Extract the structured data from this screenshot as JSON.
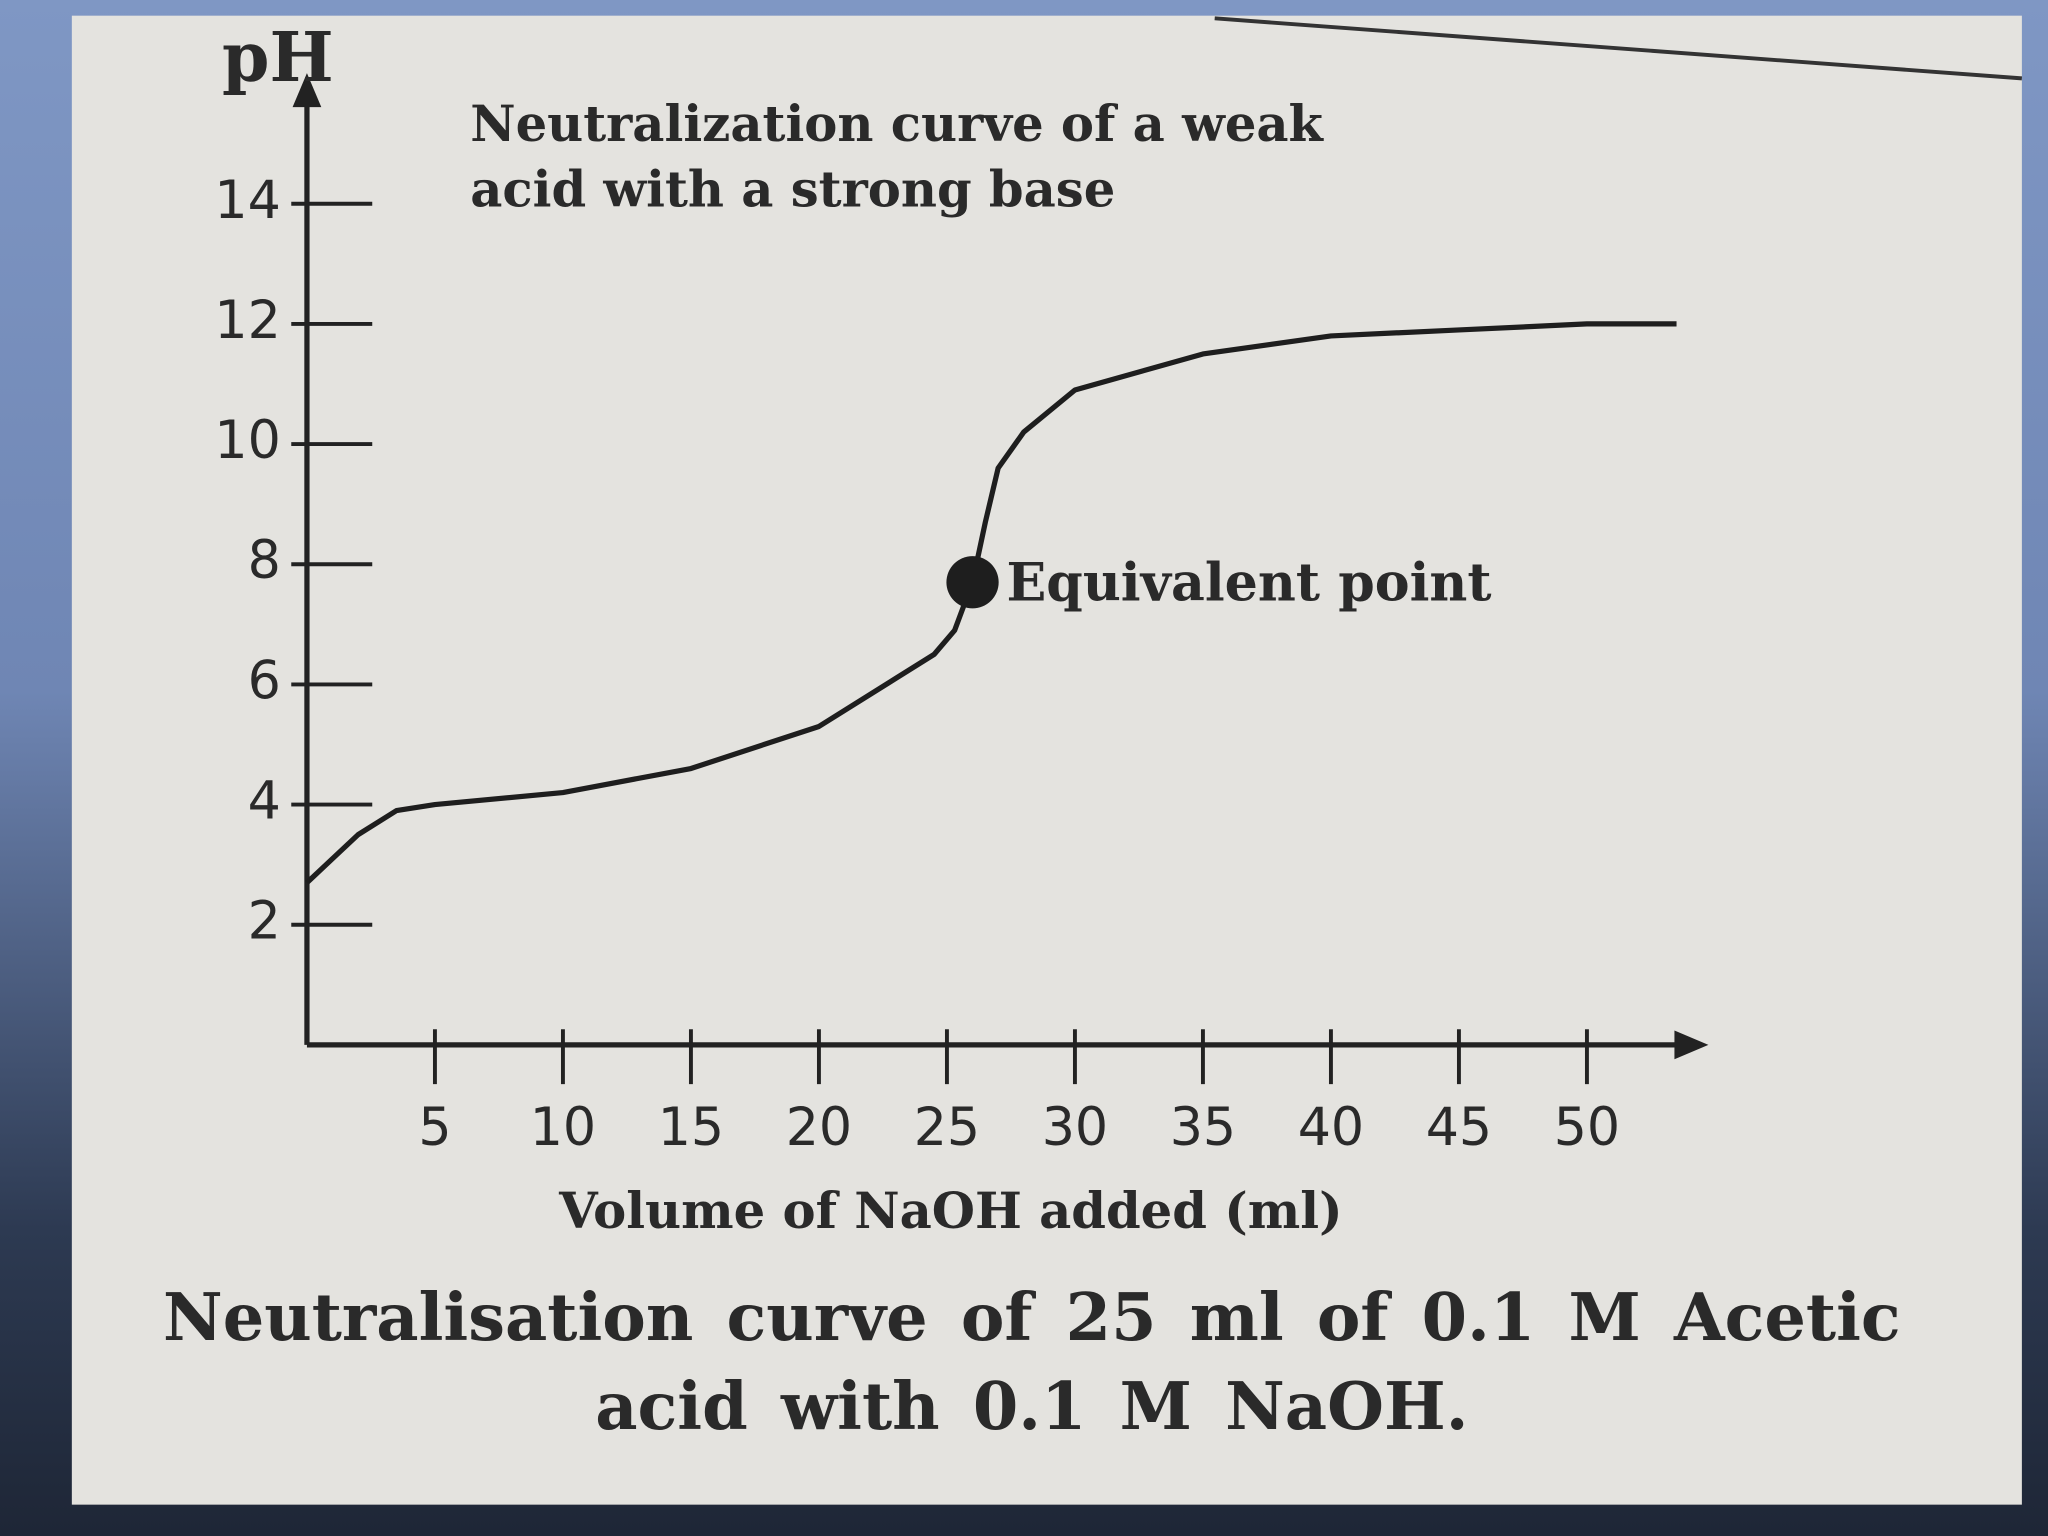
{
  "chart_data": {
    "type": "line",
    "title": "Neutralization curve of a weak acid with a strong base",
    "caption": "Neutralisation curve of 25 ml of 0.1 M Acetic acid with 0.1 M NaOH.",
    "x_label": "Volume of NaOH added (ml)",
    "y_label": "pH",
    "x": [
      0,
      1,
      2,
      3.5,
      5,
      10,
      15,
      20,
      23,
      24.5,
      25.3,
      26,
      26.5,
      27,
      28,
      30,
      35,
      40,
      45,
      50,
      53.5
    ],
    "values": [
      2.7,
      3.1,
      3.5,
      3.9,
      4.0,
      4.2,
      4.6,
      5.3,
      6.1,
      6.5,
      6.9,
      7.7,
      8.7,
      9.6,
      10.2,
      10.9,
      11.5,
      11.8,
      11.9,
      12.0,
      12.0
    ],
    "color": "#1e1e1e",
    "annotations": [
      {
        "text": "Equivalent point",
        "x": 26,
        "y": 7.7
      }
    ],
    "xlim": [
      0,
      55
    ],
    "ylim": [
      0,
      16
    ],
    "xticks": [
      5,
      10,
      15,
      20,
      25,
      30,
      35,
      40,
      45,
      50
    ],
    "yticks": [
      2,
      4,
      6,
      8,
      10,
      12,
      14
    ]
  }
}
